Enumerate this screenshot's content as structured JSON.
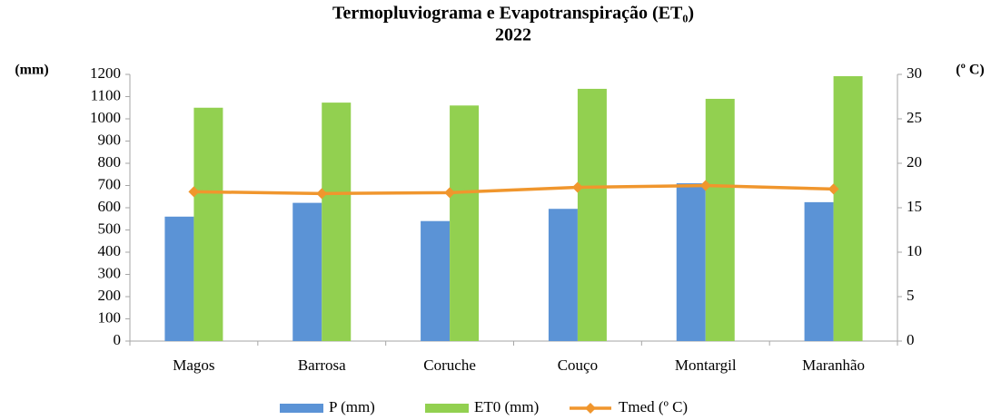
{
  "chart_data": {
    "type": "bar",
    "title": [
      "Termopluviograma e Evapotranspiração (ET₀)",
      "2022"
    ],
    "y_label": "(mm)",
    "y2_label": "(º C)",
    "categories": [
      "Magos",
      "Barrosa",
      "Coruche",
      "Couço",
      "Montargil",
      "Maranhão"
    ],
    "series": [
      {
        "name": "P (mm)",
        "type": "bar",
        "color": "#5b93d6",
        "values": [
          560,
          622,
          540,
          595,
          710,
          625
        ]
      },
      {
        "name": "ET0 (mm)",
        "type": "bar",
        "color": "#92d050",
        "values": [
          1050,
          1073,
          1060,
          1135,
          1090,
          1192
        ]
      },
      {
        "name": "Tmed (º C)",
        "type": "line",
        "axis": "y2",
        "color": "#f0962d",
        "values": [
          16.8,
          16.6,
          16.7,
          17.3,
          17.5,
          17.1
        ]
      }
    ],
    "ylim": [
      0,
      1200
    ],
    "yticks": [
      0,
      100,
      200,
      300,
      400,
      500,
      600,
      700,
      800,
      900,
      1000,
      1100,
      1200
    ],
    "y2lim": [
      0,
      30
    ],
    "y2ticks": [
      0,
      5,
      10,
      15,
      20,
      25,
      30
    ],
    "grid": false,
    "legend": "bottom"
  }
}
